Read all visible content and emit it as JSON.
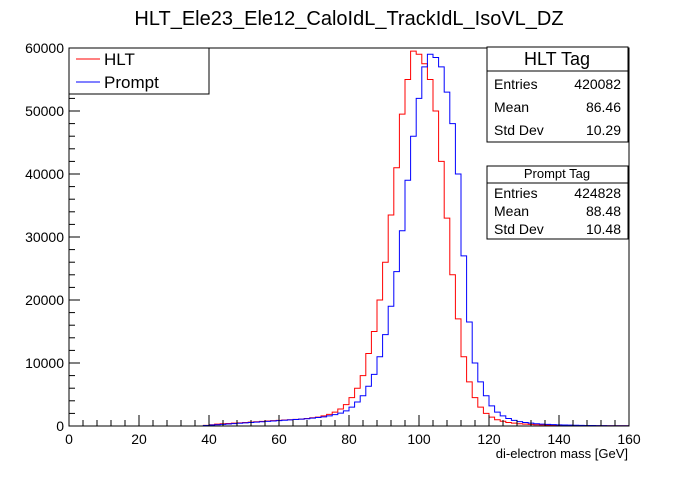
{
  "chart_data": {
    "type": "histogram",
    "title": "HLT_Ele23_Ele12_CaloIdL_TrackIdL_IsoVL_DZ",
    "xlabel": "di-electron mass [GeV]",
    "ylabel": "",
    "xlim": [
      0,
      160
    ],
    "ylim": [
      0,
      60000
    ],
    "x_ticks": [
      0,
      20,
      40,
      60,
      80,
      100,
      120,
      140,
      160
    ],
    "y_ticks": [
      0,
      10000,
      20000,
      30000,
      40000,
      50000,
      60000
    ],
    "bin_edges_start": 0,
    "bin_width": 1.6,
    "series": [
      {
        "name": "HLT",
        "color": "#ff0000",
        "values": [
          0,
          0,
          0,
          0,
          0,
          0,
          0,
          0,
          0,
          0,
          0,
          0,
          0,
          0,
          0,
          0,
          0,
          0,
          0,
          0,
          0,
          0,
          0,
          0,
          100,
          200,
          300,
          350,
          400,
          450,
          500,
          560,
          620,
          680,
          740,
          800,
          850,
          900,
          950,
          1000,
          1050,
          1100,
          1200,
          1300,
          1400,
          1600,
          1850,
          2200,
          2700,
          3400,
          4500,
          6000,
          8000,
          11500,
          15000,
          20000,
          26000,
          33500,
          41000,
          49500,
          55000,
          59500,
          59000,
          57500,
          55000,
          50000,
          42000,
          33000,
          24000,
          17000,
          11000,
          7000,
          4500,
          3000,
          2000,
          1400,
          1000,
          750,
          550,
          450,
          350,
          300,
          250,
          200,
          180,
          160,
          140,
          120,
          100,
          90,
          80,
          70,
          60,
          55,
          50,
          45,
          40,
          35,
          30,
          30
        ]
      },
      {
        "name": "Prompt",
        "color": "#0000ff",
        "values": [
          0,
          0,
          0,
          0,
          0,
          0,
          0,
          0,
          0,
          0,
          0,
          0,
          0,
          0,
          0,
          0,
          0,
          0,
          0,
          0,
          0,
          0,
          0,
          0,
          80,
          150,
          200,
          260,
          320,
          380,
          440,
          500,
          560,
          620,
          680,
          740,
          800,
          860,
          920,
          980,
          1040,
          1100,
          1160,
          1250,
          1350,
          1450,
          1600,
          1800,
          2050,
          2400,
          3000,
          3800,
          4800,
          6300,
          8200,
          11000,
          14500,
          19000,
          24500,
          31000,
          39000,
          46000,
          52000,
          57000,
          59000,
          58500,
          57000,
          53000,
          48000,
          40000,
          27000,
          16500,
          10000,
          7000,
          4800,
          3200,
          2200,
          1600,
          1200,
          900,
          700,
          560,
          450,
          360,
          300,
          250,
          210,
          180,
          150,
          130,
          110,
          95,
          80,
          70,
          60,
          55,
          50,
          45,
          40,
          35
        ]
      }
    ],
    "legend": [
      {
        "label": "HLT",
        "color": "#ff0000"
      },
      {
        "label": "Prompt",
        "color": "#0000ff"
      }
    ],
    "stats": [
      {
        "title": "HLT Tag",
        "rows": [
          {
            "label": "Entries",
            "value": "420082"
          },
          {
            "label": "Mean",
            "value": "86.46"
          },
          {
            "label": "Std Dev",
            "value": "10.29"
          }
        ]
      },
      {
        "title": "Prompt Tag",
        "rows": [
          {
            "label": "Entries",
            "value": "424828"
          },
          {
            "label": "Mean",
            "value": "88.48"
          },
          {
            "label": "Std Dev",
            "value": "10.48"
          }
        ]
      }
    ]
  }
}
